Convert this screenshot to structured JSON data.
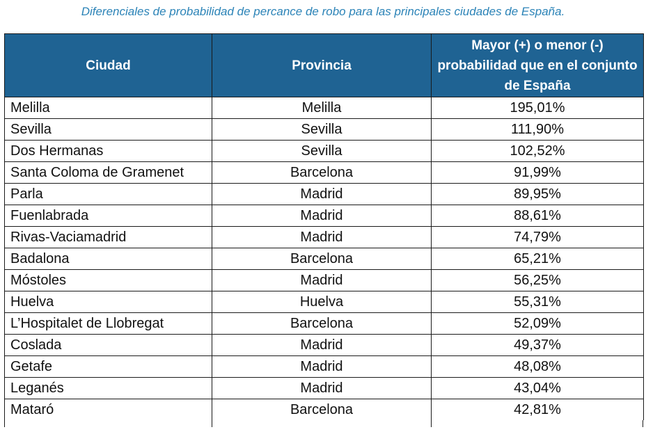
{
  "title": "Diferenciales de probabilidad de percance de robo para las principales ciudades de España.",
  "columns": [
    "Ciudad",
    "Provincia",
    "Mayor (+) o menor (-) probabilidad que en el conjunto de España"
  ],
  "colors": {
    "header_bg": "#1f6393",
    "header_text": "#ffffff",
    "title_text": "#2b83b7"
  },
  "rows": [
    {
      "city": "Melilla",
      "province": "Melilla",
      "value": "195,01%"
    },
    {
      "city": "Sevilla",
      "province": "Sevilla",
      "value": "111,90%"
    },
    {
      "city": "Dos Hermanas",
      "province": "Sevilla",
      "value": "102,52%"
    },
    {
      "city": "Santa Coloma de Gramenet",
      "province": "Barcelona",
      "value": "91,99%"
    },
    {
      "city": "Parla",
      "province": "Madrid",
      "value": "89,95%"
    },
    {
      "city": "Fuenlabrada",
      "province": "Madrid",
      "value": "88,61%"
    },
    {
      "city": "Rivas-Vaciamadrid",
      "province": "Madrid",
      "value": "74,79%"
    },
    {
      "city": "Badalona",
      "province": "Barcelona",
      "value": "65,21%"
    },
    {
      "city": "Móstoles",
      "province": "Madrid",
      "value": "56,25%"
    },
    {
      "city": "Huelva",
      "province": "Huelva",
      "value": "55,31%"
    },
    {
      "city": "L’Hospitalet de Llobregat",
      "province": "Barcelona",
      "value": "52,09%"
    },
    {
      "city": "Coslada",
      "province": "Madrid",
      "value": "49,37%"
    },
    {
      "city": "Getafe",
      "province": "Madrid",
      "value": "48,08%"
    },
    {
      "city": "Leganés",
      "province": "Madrid",
      "value": "43,04%"
    },
    {
      "city": "Mataró",
      "province": "Barcelona",
      "value": "42,81%"
    }
  ]
}
